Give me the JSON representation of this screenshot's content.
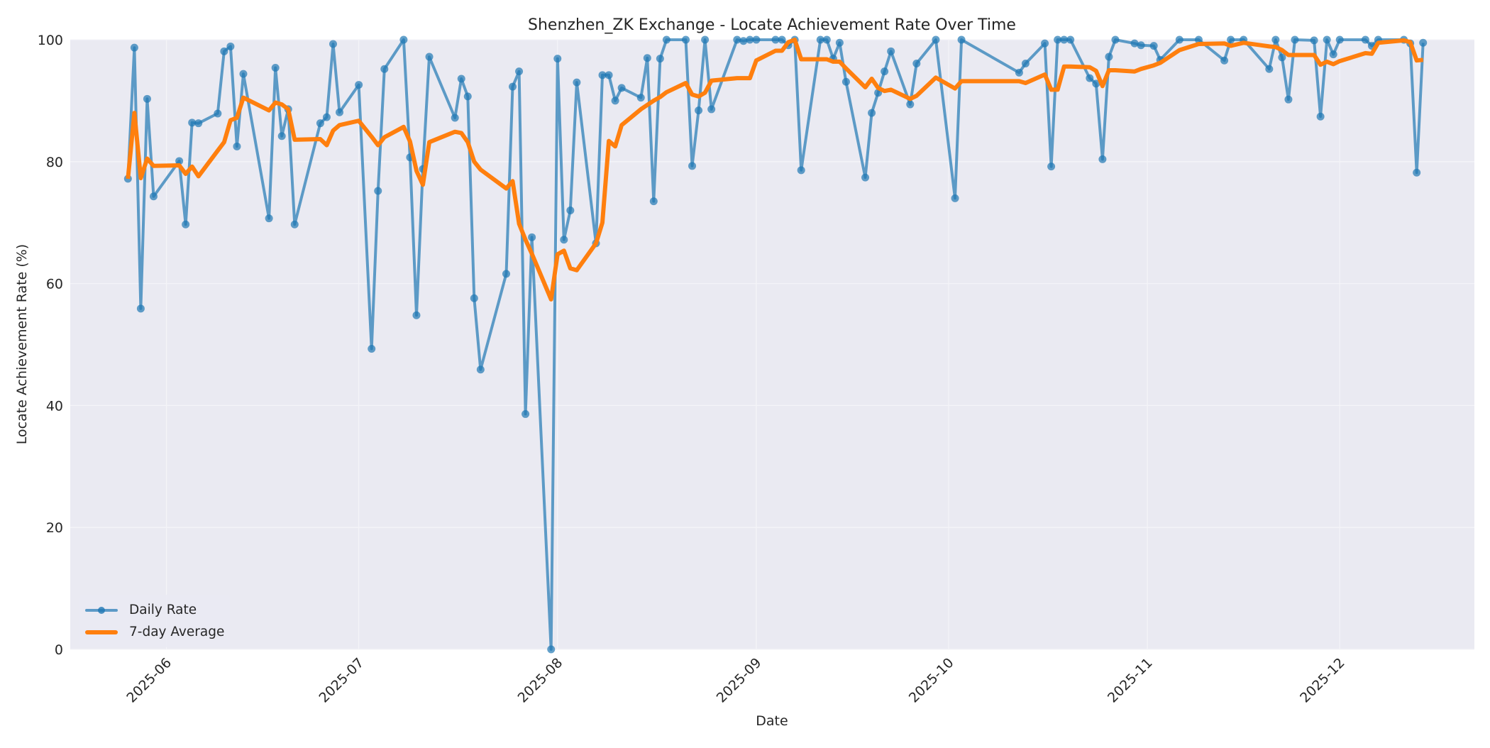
{
  "chart_data": {
    "type": "line",
    "title": "Shenzhen_ZK Exchange - Locate Achievement Rate Over Time",
    "xlabel": "Date",
    "ylabel": "Locate Achievement Rate (%)",
    "ylim": [
      0,
      100
    ],
    "yticks": [
      0,
      20,
      40,
      60,
      80,
      100
    ],
    "xticks": [
      "2025-06",
      "2025-07",
      "2025-08",
      "2025-09",
      "2025-10",
      "2025-11",
      "2025-12"
    ],
    "xlim": [
      "2025-05-17",
      "2025-12-22"
    ],
    "grid": true,
    "legend_position": "lower left",
    "colors": {
      "daily": "#1f77b4",
      "average": "#ff7f0e",
      "plot_bg": "#eaeaf2",
      "grid": "#ffffff"
    },
    "series": [
      {
        "name": "Daily Rate",
        "style": "line+markers",
        "points": [
          [
            "2025-05-26",
            77.2
          ],
          [
            "2025-05-27",
            98.7
          ],
          [
            "2025-05-28",
            55.9
          ],
          [
            "2025-05-29",
            90.3
          ],
          [
            "2025-05-30",
            74.3
          ],
          [
            "2025-06-03",
            80.1
          ],
          [
            "2025-06-04",
            69.7
          ],
          [
            "2025-06-05",
            86.4
          ],
          [
            "2025-06-06",
            86.3
          ],
          [
            "2025-06-09",
            87.9
          ],
          [
            "2025-06-10",
            98.1
          ],
          [
            "2025-06-11",
            98.9
          ],
          [
            "2025-06-12",
            82.5
          ],
          [
            "2025-06-13",
            94.4
          ],
          [
            "2025-06-17",
            70.7
          ],
          [
            "2025-06-18",
            95.4
          ],
          [
            "2025-06-19",
            84.2
          ],
          [
            "2025-06-20",
            88.6
          ],
          [
            "2025-06-21",
            69.7
          ],
          [
            "2025-06-25",
            86.3
          ],
          [
            "2025-06-26",
            87.3
          ],
          [
            "2025-06-27",
            99.3
          ],
          [
            "2025-06-28",
            88.1
          ],
          [
            "2025-07-01",
            92.6
          ],
          [
            "2025-07-03",
            49.3
          ],
          [
            "2025-07-04",
            75.2
          ],
          [
            "2025-07-05",
            95.2
          ],
          [
            "2025-07-08",
            100.0
          ],
          [
            "2025-07-09",
            80.7
          ],
          [
            "2025-07-10",
            54.8
          ],
          [
            "2025-07-11",
            78.8
          ],
          [
            "2025-07-12",
            97.2
          ],
          [
            "2025-07-16",
            87.2
          ],
          [
            "2025-07-17",
            93.6
          ],
          [
            "2025-07-18",
            90.7
          ],
          [
            "2025-07-19",
            57.6
          ],
          [
            "2025-07-20",
            45.9
          ],
          [
            "2025-07-24",
            61.6
          ],
          [
            "2025-07-25",
            92.3
          ],
          [
            "2025-07-26",
            94.8
          ],
          [
            "2025-07-27",
            38.6
          ],
          [
            "2025-07-28",
            67.6
          ],
          [
            "2025-07-31",
            0.0
          ],
          [
            "2025-08-01",
            96.9
          ],
          [
            "2025-08-02",
            67.2
          ],
          [
            "2025-08-03",
            72.0
          ],
          [
            "2025-08-04",
            93.0
          ],
          [
            "2025-08-07",
            66.6
          ],
          [
            "2025-08-08",
            94.2
          ],
          [
            "2025-08-09",
            94.2
          ],
          [
            "2025-08-10",
            90.0
          ],
          [
            "2025-08-11",
            92.1
          ],
          [
            "2025-08-14",
            90.5
          ],
          [
            "2025-08-15",
            97.0
          ],
          [
            "2025-08-16",
            73.5
          ],
          [
            "2025-08-17",
            96.9
          ],
          [
            "2025-08-18",
            100.0
          ],
          [
            "2025-08-21",
            100.0
          ],
          [
            "2025-08-22",
            79.3
          ],
          [
            "2025-08-23",
            88.4
          ],
          [
            "2025-08-24",
            100.0
          ],
          [
            "2025-08-25",
            88.6
          ],
          [
            "2025-08-29",
            100.0
          ],
          [
            "2025-08-30",
            99.8
          ],
          [
            "2025-08-31",
            100.0
          ],
          [
            "2025-09-01",
            100.0
          ],
          [
            "2025-09-04",
            100.0
          ],
          [
            "2025-09-05",
            100.0
          ],
          [
            "2025-09-06",
            99.1
          ],
          [
            "2025-09-07",
            100.0
          ],
          [
            "2025-09-08",
            78.6
          ],
          [
            "2025-09-11",
            100.0
          ],
          [
            "2025-09-12",
            100.0
          ],
          [
            "2025-09-13",
            96.9
          ],
          [
            "2025-09-14",
            99.5
          ],
          [
            "2025-09-15",
            93.1
          ],
          [
            "2025-09-18",
            77.4
          ],
          [
            "2025-09-19",
            88.0
          ],
          [
            "2025-09-20",
            91.3
          ],
          [
            "2025-09-21",
            94.8
          ],
          [
            "2025-09-22",
            98.1
          ],
          [
            "2025-09-25",
            89.4
          ],
          [
            "2025-09-26",
            96.1
          ],
          [
            "2025-09-29",
            100.0
          ],
          [
            "2025-10-02",
            74.0
          ],
          [
            "2025-10-03",
            100.0
          ],
          [
            "2025-10-12",
            94.6
          ],
          [
            "2025-10-13",
            96.1
          ],
          [
            "2025-10-16",
            99.4
          ],
          [
            "2025-10-17",
            79.2
          ],
          [
            "2025-10-18",
            100.0
          ],
          [
            "2025-10-19",
            100.0
          ],
          [
            "2025-10-20",
            100.0
          ],
          [
            "2025-10-23",
            93.7
          ],
          [
            "2025-10-24",
            92.8
          ],
          [
            "2025-10-25",
            80.4
          ],
          [
            "2025-10-26",
            97.2
          ],
          [
            "2025-10-27",
            100.0
          ],
          [
            "2025-10-30",
            99.4
          ],
          [
            "2025-10-31",
            99.1
          ],
          [
            "2025-11-02",
            99.0
          ],
          [
            "2025-11-03",
            96.7
          ],
          [
            "2025-11-06",
            100.0
          ],
          [
            "2025-11-09",
            100.0
          ],
          [
            "2025-11-13",
            96.6
          ],
          [
            "2025-11-14",
            100.0
          ],
          [
            "2025-11-16",
            100.0
          ],
          [
            "2025-11-20",
            95.2
          ],
          [
            "2025-11-21",
            100.0
          ],
          [
            "2025-11-22",
            97.1
          ],
          [
            "2025-11-23",
            90.2
          ],
          [
            "2025-11-24",
            100.0
          ],
          [
            "2025-11-27",
            99.9
          ],
          [
            "2025-11-28",
            87.4
          ],
          [
            "2025-11-29",
            100.0
          ],
          [
            "2025-11-30",
            97.6
          ],
          [
            "2025-12-01",
            100.0
          ],
          [
            "2025-12-05",
            100.0
          ],
          [
            "2025-12-06",
            99.0
          ],
          [
            "2025-12-07",
            100.0
          ],
          [
            "2025-12-11",
            100.0
          ],
          [
            "2025-12-12",
            99.4
          ],
          [
            "2025-12-13",
            78.2
          ],
          [
            "2025-12-14",
            99.5
          ]
        ]
      },
      {
        "name": "7-day Average",
        "style": "line",
        "points": [
          [
            "2025-05-26",
            77.2
          ],
          [
            "2025-05-27",
            88.0
          ],
          [
            "2025-05-28",
            77.3
          ],
          [
            "2025-05-29",
            80.5
          ],
          [
            "2025-05-30",
            79.3
          ],
          [
            "2025-06-03",
            79.4
          ],
          [
            "2025-06-04",
            78.0
          ],
          [
            "2025-06-05",
            79.2
          ],
          [
            "2025-06-06",
            77.6
          ],
          [
            "2025-06-09",
            81.8
          ],
          [
            "2025-06-10",
            83.2
          ],
          [
            "2025-06-11",
            86.8
          ],
          [
            "2025-06-12",
            87.2
          ],
          [
            "2025-06-13",
            90.5
          ],
          [
            "2025-06-17",
            88.4
          ],
          [
            "2025-06-18",
            89.7
          ],
          [
            "2025-06-19",
            89.4
          ],
          [
            "2025-06-20",
            88.6
          ],
          [
            "2025-06-21",
            83.6
          ],
          [
            "2025-06-25",
            83.7
          ],
          [
            "2025-06-26",
            82.7
          ],
          [
            "2025-06-27",
            85.1
          ],
          [
            "2025-06-28",
            86.0
          ],
          [
            "2025-07-01",
            86.7
          ],
          [
            "2025-07-03",
            84.1
          ],
          [
            "2025-07-04",
            82.7
          ],
          [
            "2025-07-05",
            84.0
          ],
          [
            "2025-07-08",
            85.7
          ],
          [
            "2025-07-09",
            83.3
          ],
          [
            "2025-07-10",
            78.5
          ],
          [
            "2025-07-11",
            76.2
          ],
          [
            "2025-07-12",
            83.2
          ],
          [
            "2025-07-16",
            84.9
          ],
          [
            "2025-07-17",
            84.7
          ],
          [
            "2025-07-18",
            83.2
          ],
          [
            "2025-07-19",
            80.0
          ],
          [
            "2025-07-20",
            78.7
          ],
          [
            "2025-07-24",
            75.6
          ],
          [
            "2025-07-25",
            76.8
          ],
          [
            "2025-07-26",
            69.8
          ],
          [
            "2025-07-27",
            67.2
          ],
          [
            "2025-07-28",
            64.9
          ],
          [
            "2025-07-31",
            57.4
          ],
          [
            "2025-08-01",
            64.8
          ],
          [
            "2025-08-02",
            65.4
          ],
          [
            "2025-08-03",
            62.5
          ],
          [
            "2025-08-04",
            62.2
          ],
          [
            "2025-08-07",
            66.6
          ],
          [
            "2025-08-08",
            70.0
          ],
          [
            "2025-08-09",
            83.4
          ],
          [
            "2025-08-10",
            82.5
          ],
          [
            "2025-08-11",
            86.0
          ],
          [
            "2025-08-14",
            88.6
          ],
          [
            "2025-08-15",
            89.3
          ],
          [
            "2025-08-16",
            90.0
          ],
          [
            "2025-08-17",
            90.6
          ],
          [
            "2025-08-18",
            91.4
          ],
          [
            "2025-08-21",
            92.9
          ],
          [
            "2025-08-22",
            91.0
          ],
          [
            "2025-08-23",
            90.7
          ],
          [
            "2025-08-24",
            91.3
          ],
          [
            "2025-08-25",
            93.3
          ],
          [
            "2025-08-29",
            93.7
          ],
          [
            "2025-08-30",
            93.7
          ],
          [
            "2025-08-31",
            93.7
          ],
          [
            "2025-09-01",
            96.6
          ],
          [
            "2025-09-04",
            98.2
          ],
          [
            "2025-09-05",
            98.2
          ],
          [
            "2025-09-06",
            99.6
          ],
          [
            "2025-09-07",
            100.0
          ],
          [
            "2025-09-08",
            96.8
          ],
          [
            "2025-09-11",
            96.8
          ],
          [
            "2025-09-12",
            96.8
          ],
          [
            "2025-09-13",
            96.4
          ],
          [
            "2025-09-14",
            96.4
          ],
          [
            "2025-09-15",
            95.3
          ],
          [
            "2025-09-18",
            92.2
          ],
          [
            "2025-09-19",
            93.6
          ],
          [
            "2025-09-20",
            92.1
          ],
          [
            "2025-09-21",
            91.6
          ],
          [
            "2025-09-22",
            91.8
          ],
          [
            "2025-09-25",
            90.3
          ],
          [
            "2025-09-26",
            90.8
          ],
          [
            "2025-09-29",
            93.8
          ],
          [
            "2025-10-02",
            92.0
          ],
          [
            "2025-10-03",
            93.2
          ],
          [
            "2025-10-12",
            93.2
          ],
          [
            "2025-10-13",
            92.9
          ],
          [
            "2025-10-16",
            94.3
          ],
          [
            "2025-10-17",
            91.8
          ],
          [
            "2025-10-18",
            91.8
          ],
          [
            "2025-10-19",
            95.6
          ],
          [
            "2025-10-20",
            95.6
          ],
          [
            "2025-10-23",
            95.5
          ],
          [
            "2025-10-24",
            94.9
          ],
          [
            "2025-10-25",
            92.4
          ],
          [
            "2025-10-26",
            95.0
          ],
          [
            "2025-10-27",
            95.0
          ],
          [
            "2025-10-30",
            94.8
          ],
          [
            "2025-10-31",
            95.2
          ],
          [
            "2025-11-02",
            95.8
          ],
          [
            "2025-11-03",
            96.2
          ],
          [
            "2025-11-06",
            98.3
          ],
          [
            "2025-11-09",
            99.3
          ],
          [
            "2025-11-13",
            99.4
          ],
          [
            "2025-11-14",
            99.0
          ],
          [
            "2025-11-16",
            99.5
          ],
          [
            "2025-11-20",
            98.9
          ],
          [
            "2025-11-21",
            98.8
          ],
          [
            "2025-11-22",
            98.3
          ],
          [
            "2025-11-23",
            97.5
          ],
          [
            "2025-11-24",
            97.5
          ],
          [
            "2025-11-27",
            97.5
          ],
          [
            "2025-11-28",
            95.9
          ],
          [
            "2025-11-29",
            96.4
          ],
          [
            "2025-11-30",
            96.0
          ],
          [
            "2025-12-01",
            96.5
          ],
          [
            "2025-12-05",
            97.8
          ],
          [
            "2025-12-06",
            97.7
          ],
          [
            "2025-12-07",
            99.5
          ],
          [
            "2025-12-11",
            99.9
          ],
          [
            "2025-12-12",
            99.6
          ],
          [
            "2025-12-13",
            96.6
          ],
          [
            "2025-12-14",
            96.7
          ]
        ]
      }
    ]
  }
}
